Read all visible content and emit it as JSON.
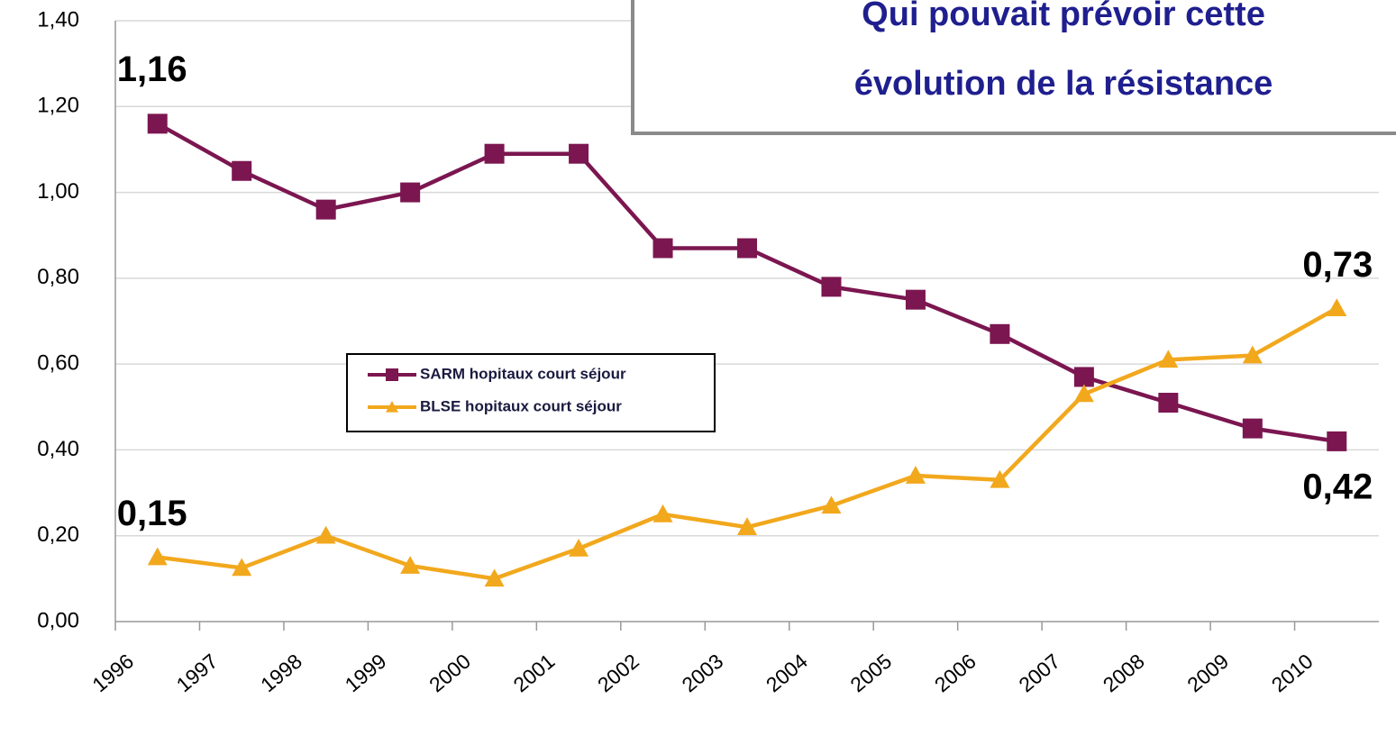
{
  "chart_data": {
    "type": "line",
    "title_lines": [
      "Qui pouvait prévoir cette",
      "évolution de la résistance"
    ],
    "categories": [
      "1996",
      "1997",
      "1998",
      "1999",
      "2000",
      "2001",
      "2002",
      "2003",
      "2004",
      "2005",
      "2006",
      "2007",
      "2008",
      "2009",
      "2010"
    ],
    "series": [
      {
        "name": "SARM hopitaux court séjour",
        "color": "#7b1650",
        "marker": "square",
        "values": [
          1.16,
          1.05,
          0.96,
          1.0,
          1.09,
          1.09,
          0.87,
          0.87,
          0.78,
          0.75,
          0.67,
          0.57,
          0.51,
          0.45,
          0.42
        ],
        "value_labels": [
          "1,16",
          null,
          null,
          null,
          null,
          null,
          null,
          null,
          null,
          null,
          null,
          null,
          null,
          null,
          "0,42"
        ]
      },
      {
        "name": "BLSE hopitaux court séjour",
        "color": "#f2a81d",
        "marker": "triangle",
        "values": [
          0.15,
          0.125,
          0.2,
          0.13,
          0.1,
          0.17,
          0.25,
          0.22,
          0.27,
          0.34,
          0.33,
          0.53,
          0.61,
          0.62,
          0.73
        ],
        "value_labels": [
          "0,15",
          null,
          null,
          null,
          null,
          null,
          null,
          null,
          null,
          null,
          null,
          null,
          null,
          null,
          "0,73"
        ]
      }
    ],
    "ylim": [
      0,
      1.4
    ],
    "yticks": [
      {
        "value": 0,
        "label": "0,00"
      },
      {
        "value": 0.2,
        "label": "0,20"
      },
      {
        "value": 0.4,
        "label": "0,40"
      },
      {
        "value": 0.6,
        "label": "0,60"
      },
      {
        "value": 0.8,
        "label": "0,80"
      },
      {
        "value": 1.0,
        "label": "1,00"
      },
      {
        "value": 1.2,
        "label": "1,20"
      },
      {
        "value": 1.4,
        "label": "1,40"
      }
    ],
    "grid": true
  }
}
